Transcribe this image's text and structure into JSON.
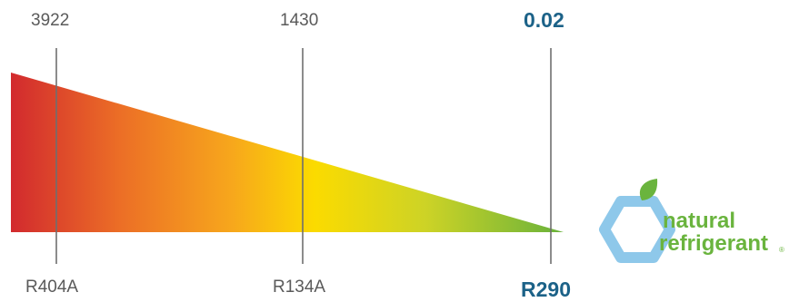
{
  "diagram": {
    "items": [
      {
        "gwp": "3922",
        "refrigerant": "R404A"
      },
      {
        "gwp": "1430",
        "refrigerant": "R134A"
      },
      {
        "gwp": "0.02",
        "refrigerant": "R290"
      }
    ],
    "gradient_colors": [
      "#d22a2e",
      "#ec6f26",
      "#f7a71c",
      "#fbdb00",
      "#cdd326",
      "#69b23b"
    ],
    "highlight_color": "#1c6288",
    "label_color": "#5a5a5a",
    "line_color": "#6f6f6f"
  },
  "logo": {
    "line1": "natural",
    "line2": "refrigerant",
    "mark": "®",
    "text_color": "#6ab43e",
    "hexagon_color": "#8ec8ea",
    "leaf_color": "#6ab43e",
    "icons": [
      "hexagon-icon",
      "leaf-icon"
    ]
  }
}
